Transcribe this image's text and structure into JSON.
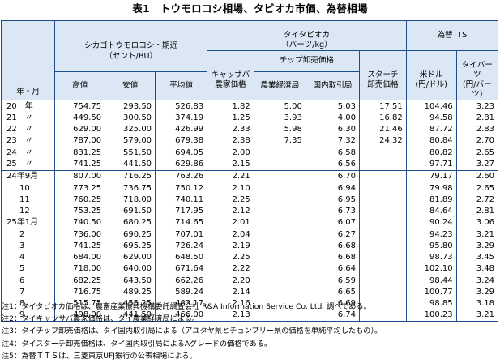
{
  "title": "表1　トウモロコシ相場、タピオカ市価、為替相場",
  "header": {
    "year_month": "年・月",
    "chicago_group": "シカゴトウモロコシ・期近\n（セント/BU）",
    "high": "高値",
    "low": "安値",
    "avg": "平均値",
    "tapioca_group": "タイタピオカ\n（バーツ/kg）",
    "cassava": "キャッサバ\n農家価格",
    "chip_group": "チップ卸売価格",
    "chip_agri": "農業経済局",
    "chip_domestic": "国内取引局",
    "starch": "スターチ\n卸売価格",
    "fx_group": "為替TTS",
    "usd": "米ドル\n(円/ドル)",
    "baht": "タイバーツ\n(円/バーツ)"
  },
  "rows": [
    [
      "20　年",
      "754.75",
      "293.50",
      "526.83",
      "1.82",
      "5.00",
      "5.03",
      "17.51",
      "104.46",
      "3.23"
    ],
    [
      "21　〃",
      "449.50",
      "300.50",
      "374.19",
      "1.25",
      "3.93",
      "4.00",
      "16.82",
      "94.58",
      "2.81"
    ],
    [
      "22　〃",
      "629.00",
      "325.00",
      "426.99",
      "2.33",
      "5.98",
      "6.30",
      "21.46",
      "87.72",
      "2.83"
    ],
    [
      "23　〃",
      "787.00",
      "579.00",
      "679.38",
      "2.38",
      "7.35",
      "7.32",
      "24.32",
      "80.84",
      "2.70"
    ],
    [
      "24　〃",
      "831.25",
      "551.50",
      "694.05",
      "2.00",
      "",
      "6.58",
      "",
      "80.82",
      "2.65"
    ],
    [
      "25　〃",
      "741.25",
      "441.50",
      "629.86",
      "2.15",
      "",
      "6.56",
      "",
      "97.71",
      "3.27"
    ],
    [
      "24年9月",
      "807.00",
      "716.25",
      "763.26",
      "2.21",
      "",
      "6.70",
      "",
      "79.17",
      "2.60"
    ],
    [
      "10",
      "773.25",
      "736.75",
      "750.12",
      "2.10",
      "",
      "6.94",
      "",
      "79.98",
      "2.65"
    ],
    [
      "11",
      "760.25",
      "718.00",
      "740.11",
      "2.25",
      "",
      "6.95",
      "",
      "81.89",
      "2.72"
    ],
    [
      "12",
      "753.25",
      "691.50",
      "717.95",
      "2.12",
      "",
      "6.73",
      "",
      "84.64",
      "2.81"
    ],
    [
      "25年1月",
      "740.50",
      "680.25",
      "714.65",
      "2.01",
      "",
      "6.07",
      "",
      "90.24",
      "3.06"
    ],
    [
      "2",
      "736.00",
      "690.25",
      "707.01",
      "2.04",
      "",
      "6.27",
      "",
      "94.23",
      "3.21"
    ],
    [
      "3",
      "741.25",
      "695.25",
      "726.24",
      "2.19",
      "",
      "6.68",
      "",
      "95.80",
      "3.29"
    ],
    [
      "4",
      "684.00",
      "629.00",
      "648.50",
      "2.25",
      "",
      "6.68",
      "",
      "98.73",
      "3.45"
    ],
    [
      "5",
      "718.00",
      "640.00",
      "671.64",
      "2.22",
      "",
      "6.64",
      "",
      "102.10",
      "3.48"
    ],
    [
      "6",
      "682.25",
      "643.50",
      "662.26",
      "2.20",
      "",
      "6.59",
      "",
      "98.44",
      "3.24"
    ],
    [
      "7",
      "716.75",
      "489.25",
      "589.24",
      "2.14",
      "",
      "6.65",
      "",
      "100.77",
      "3.29"
    ],
    [
      "8",
      "515.75",
      "455.25",
      "483.17",
      "2.16",
      "",
      "6.69",
      "",
      "98.85",
      "3.18"
    ],
    [
      "9",
      "498.00",
      "441.50",
      "466.00",
      "2.13",
      "",
      "6.74",
      "",
      "100.23",
      "3.21"
    ]
  ],
  "notes": [
    "注1：タイタピオカ価格は、農畜産業振興機構委託調査会社 R&A Information Service Co. Ltd. 調べである。",
    "注2：タイキャッサバ農家価格は、タイ農業経済局による。",
    "注3：タイチップ卸売価格は、タイ国内取引局による（アユタヤ県とチョンブリー県の価格を単純平均したもの）。",
    "注4：タイスターチ卸売価格は、タイ国内取引局によるAグレードの価格である。",
    "注5：為替ＴＴＳは、三菱東京UFJ銀行の公表相場による。"
  ]
}
